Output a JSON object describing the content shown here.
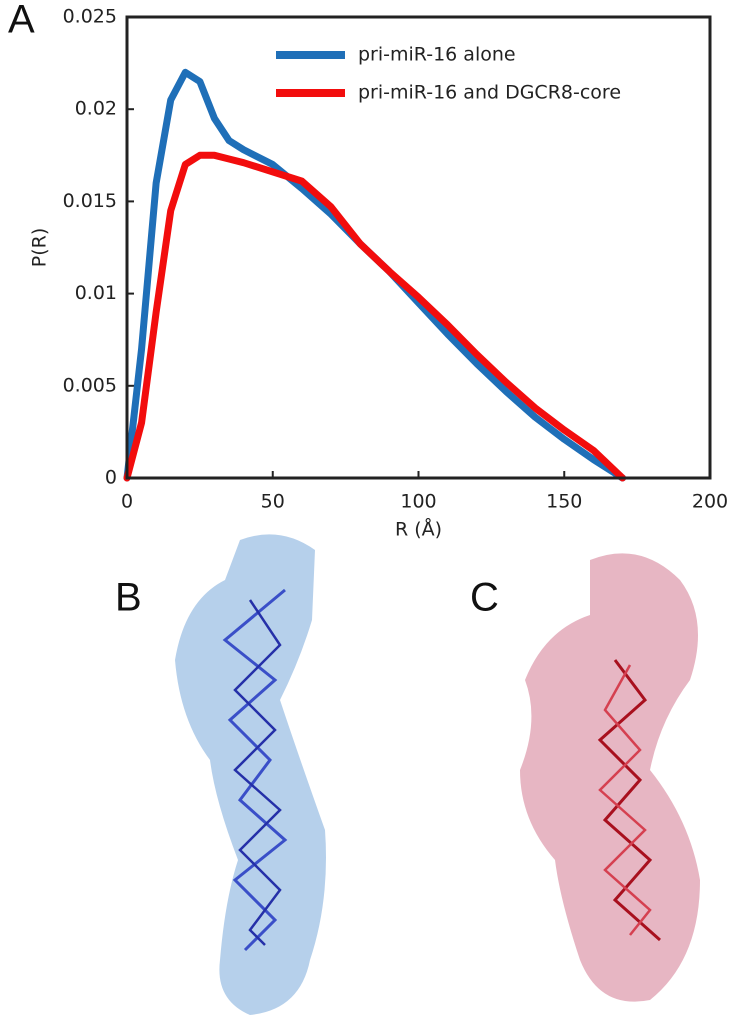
{
  "chart_data": {
    "type": "line",
    "xlabel": "R (Å)",
    "ylabel": "P(R)",
    "x": [
      0,
      5,
      10,
      15,
      20,
      25,
      30,
      35,
      40,
      50,
      60,
      70,
      80,
      90,
      100,
      110,
      120,
      130,
      140,
      150,
      160,
      170
    ],
    "series": [
      {
        "name": "pri-miR-16 alone",
        "color": "#1f6fb8",
        "values": [
          0,
          0.007,
          0.016,
          0.0205,
          0.022,
          0.0215,
          0.0195,
          0.0183,
          0.0178,
          0.017,
          0.0157,
          0.0143,
          0.0127,
          0.0112,
          0.0095,
          0.0078,
          0.0062,
          0.0047,
          0.0033,
          0.0021,
          0.001,
          0
        ]
      },
      {
        "name": "pri-miR-16 and DGCR8-core",
        "color": "#f20d0d",
        "values": [
          0,
          0.003,
          0.009,
          0.0145,
          0.017,
          0.0175,
          0.0175,
          0.0173,
          0.0171,
          0.0166,
          0.0161,
          0.0147,
          0.0127,
          0.0112,
          0.0098,
          0.0083,
          0.0067,
          0.0052,
          0.0038,
          0.0026,
          0.0015,
          0
        ]
      }
    ],
    "xlim": [
      0,
      200
    ],
    "xticks": [
      0,
      50,
      100,
      150,
      200
    ],
    "ylim": [
      0,
      0.025
    ],
    "yticks": [
      0,
      0.005,
      0.01,
      0.015,
      0.02,
      0.025
    ],
    "legend": "upper right"
  },
  "panels": [
    "A",
    "B",
    "C"
  ]
}
